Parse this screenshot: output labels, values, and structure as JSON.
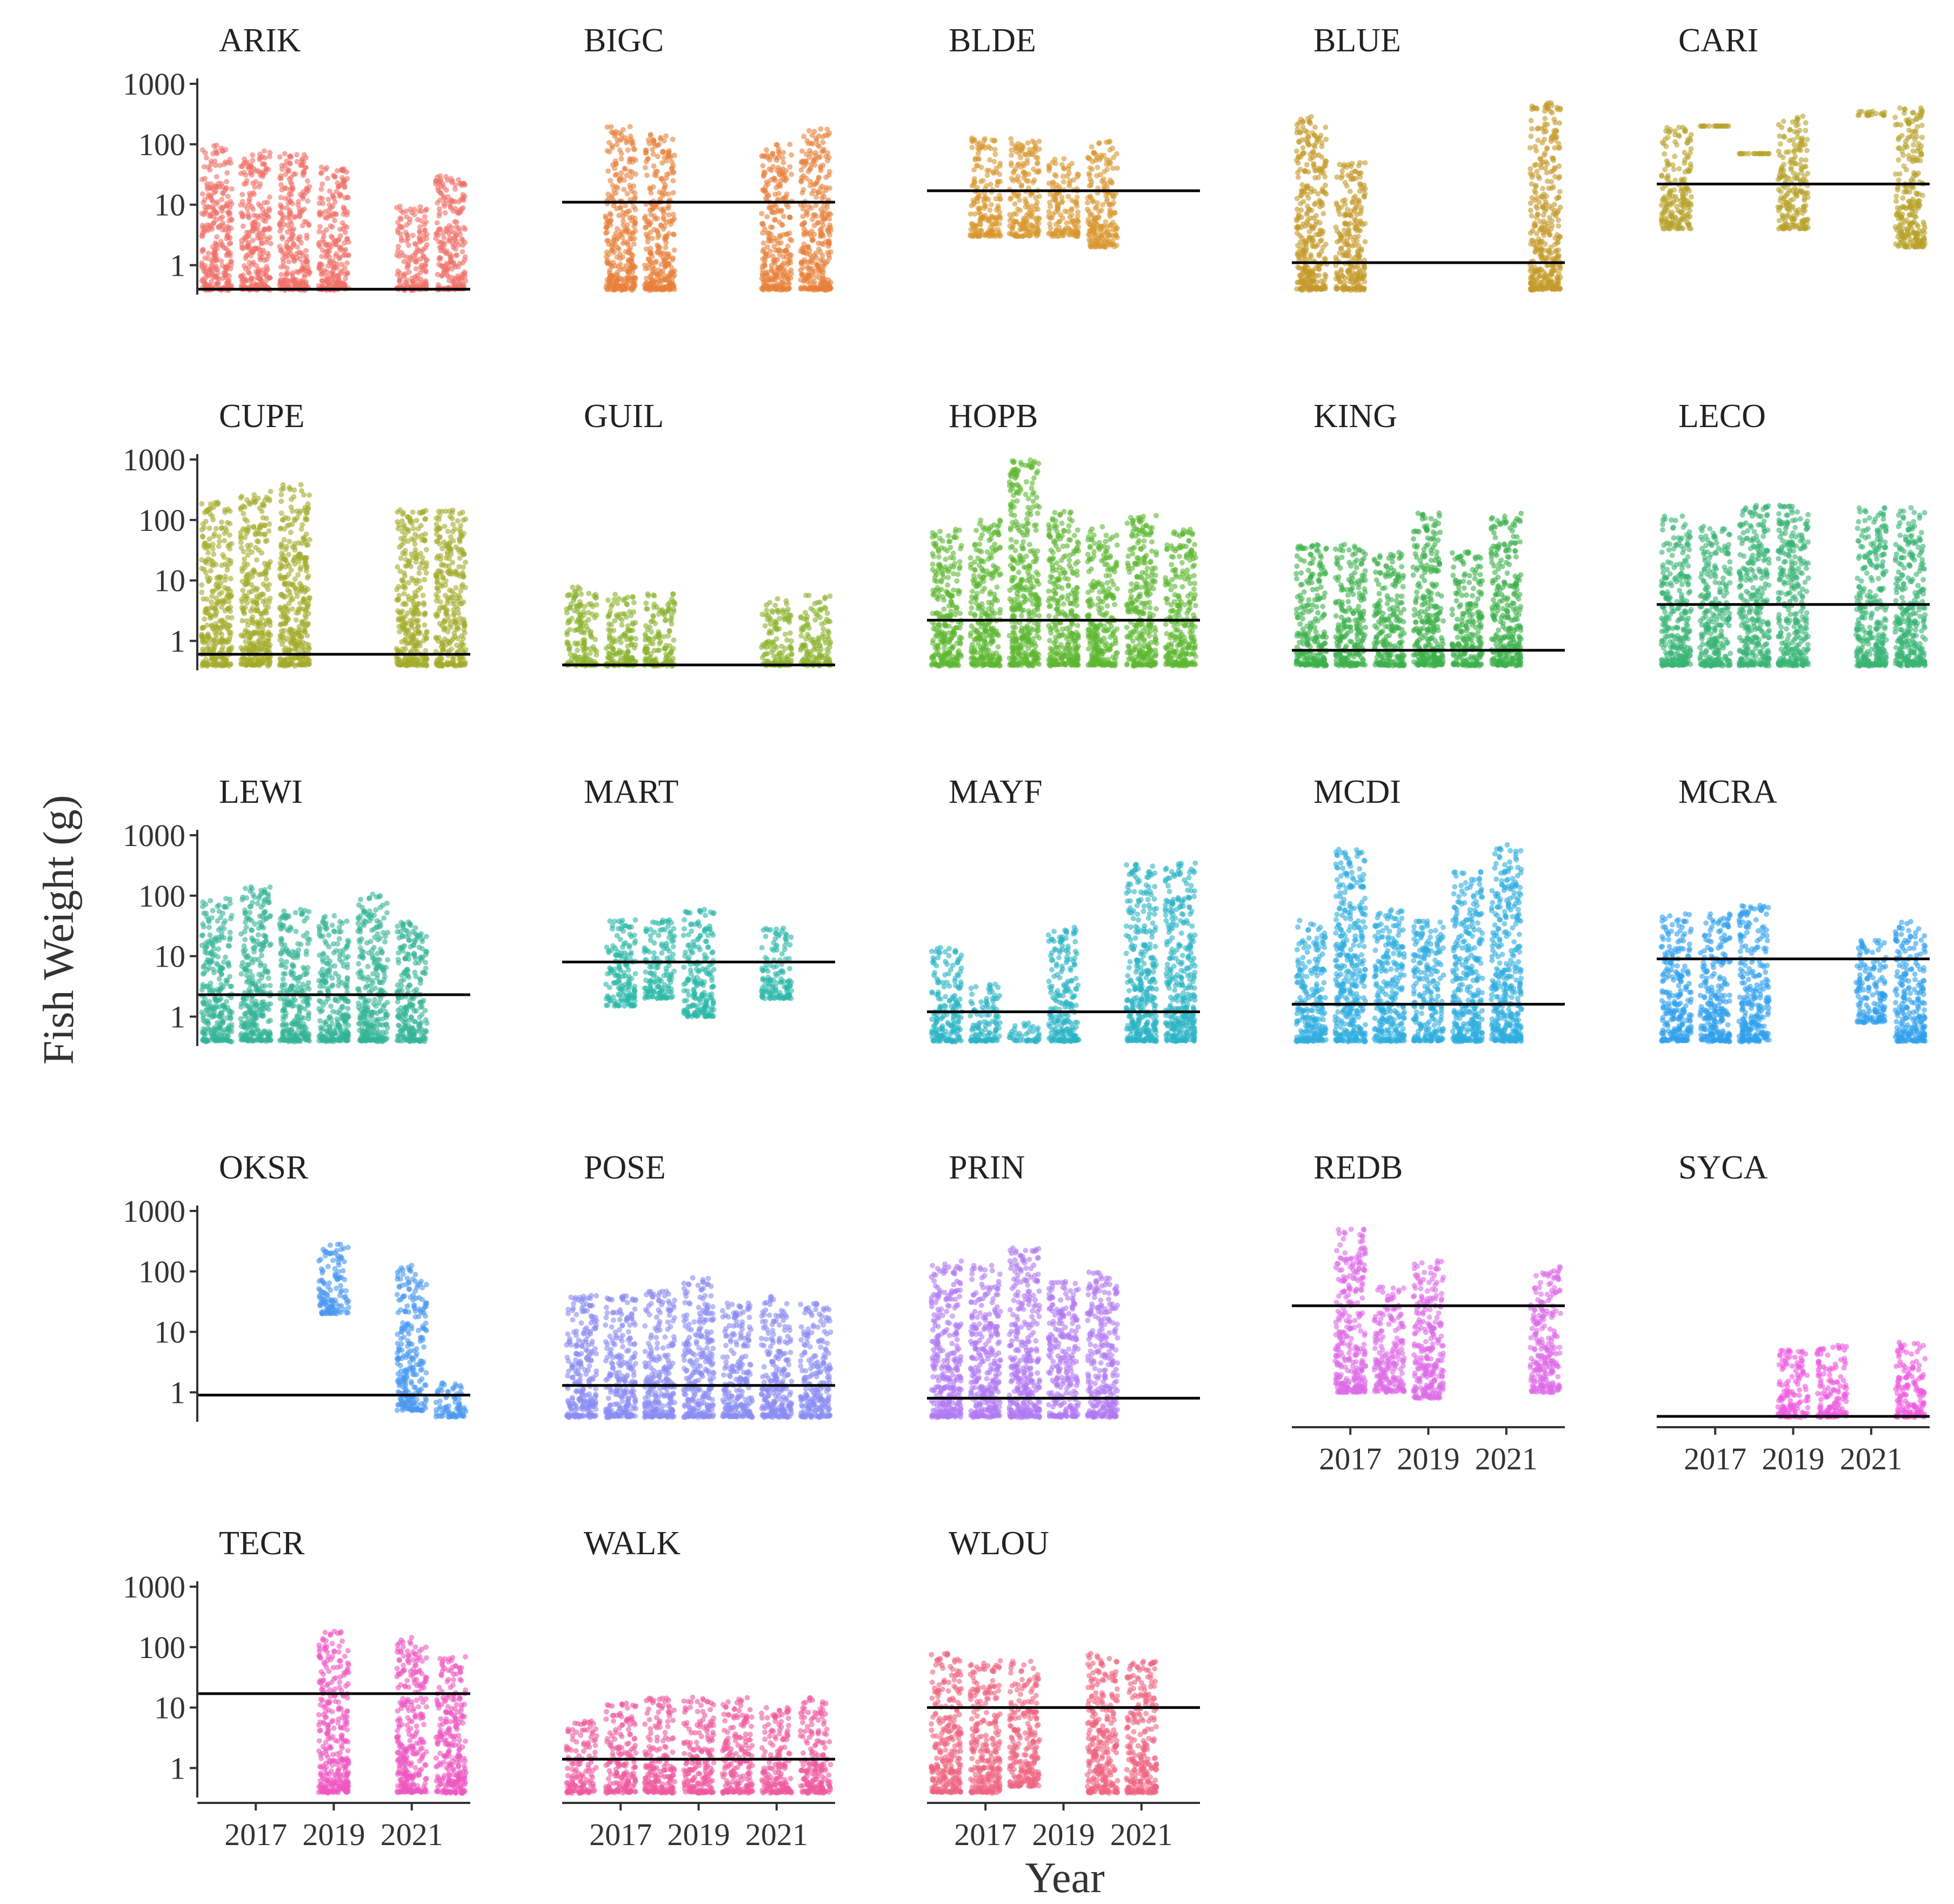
{
  "chart_data": {
    "type": "scatter",
    "title": "",
    "xlabel": "Year",
    "ylabel": "Fish Weight (g)",
    "yscale": "log10",
    "ylim": [
      0.4,
      1000
    ],
    "yticks": [
      1,
      10,
      100,
      1000
    ],
    "ytick_labels": [
      "1",
      "10",
      "100",
      "1000"
    ],
    "xlim": [
      2015.5,
      2022.5
    ],
    "xticks": [
      2017,
      2019,
      2021
    ],
    "xtick_labels": [
      "2017",
      "2019",
      "2021"
    ],
    "grid": false,
    "legend": "none",
    "panels": [
      {
        "site": "ARIK",
        "color": "#f07068",
        "median": 0.4,
        "groups": [
          {
            "year": 2016,
            "lo": 0.4,
            "hi": 100
          },
          {
            "year": 2017,
            "lo": 0.4,
            "hi": 80
          },
          {
            "year": 2018,
            "lo": 0.4,
            "hi": 70
          },
          {
            "year": 2019,
            "lo": 0.4,
            "hi": 45
          },
          {
            "year": 2021,
            "lo": 0.4,
            "hi": 10
          },
          {
            "year": 2022,
            "lo": 0.4,
            "hi": 30
          }
        ]
      },
      {
        "site": "BIGC",
        "color": "#e8803a",
        "median": 11,
        "groups": [
          {
            "year": 2017,
            "lo": 0.4,
            "hi": 200
          },
          {
            "year": 2018,
            "lo": 0.4,
            "hi": 150
          },
          {
            "year": 2021,
            "lo": 0.4,
            "hi": 100
          },
          {
            "year": 2022,
            "lo": 0.4,
            "hi": 200
          }
        ]
      },
      {
        "site": "BLDE",
        "color": "#d8962e",
        "median": 17,
        "groups": [
          {
            "year": 2017,
            "lo": 3,
            "hi": 130
          },
          {
            "year": 2018,
            "lo": 3,
            "hi": 130
          },
          {
            "year": 2019,
            "lo": 3,
            "hi": 60
          },
          {
            "year": 2020,
            "lo": 2,
            "hi": 120
          }
        ]
      },
      {
        "site": "BLUE",
        "color": "#c49a2a",
        "median": 1.1,
        "groups": [
          {
            "year": 2016,
            "lo": 0.4,
            "hi": 300
          },
          {
            "year": 2017,
            "lo": 0.4,
            "hi": 50
          },
          {
            "year": 2022,
            "lo": 0.4,
            "hi": 500
          }
        ]
      },
      {
        "site": "CARI",
        "color": "#b8a22a",
        "median": 22,
        "groups": [
          {
            "year": 2016,
            "lo": 4,
            "hi": 200
          },
          {
            "year": 2017,
            "lo": 200,
            "hi": 200
          },
          {
            "year": 2018,
            "lo": 70,
            "hi": 70
          },
          {
            "year": 2019,
            "lo": 4,
            "hi": 300
          },
          {
            "year": 2021,
            "lo": 300,
            "hi": 350
          },
          {
            "year": 2022,
            "lo": 2,
            "hi": 400
          }
        ]
      },
      {
        "site": "CUPE",
        "color": "#a4ab2a",
        "median": 0.6,
        "groups": [
          {
            "year": 2016,
            "lo": 0.4,
            "hi": 200
          },
          {
            "year": 2017,
            "lo": 0.4,
            "hi": 300
          },
          {
            "year": 2018,
            "lo": 0.4,
            "hi": 400
          },
          {
            "year": 2021,
            "lo": 0.4,
            "hi": 150
          },
          {
            "year": 2022,
            "lo": 0.4,
            "hi": 150
          }
        ]
      },
      {
        "site": "GUIL",
        "color": "#8ab22c",
        "median": 0.4,
        "groups": [
          {
            "year": 2016,
            "lo": 0.4,
            "hi": 8
          },
          {
            "year": 2017,
            "lo": 0.4,
            "hi": 6
          },
          {
            "year": 2018,
            "lo": 0.4,
            "hi": 6
          },
          {
            "year": 2021,
            "lo": 0.4,
            "hi": 5
          },
          {
            "year": 2022,
            "lo": 0.4,
            "hi": 6
          }
        ]
      },
      {
        "site": "HOPB",
        "color": "#5eb830",
        "median": 2.2,
        "groups": [
          {
            "year": 2016,
            "lo": 0.4,
            "hi": 70
          },
          {
            "year": 2017,
            "lo": 0.4,
            "hi": 100
          },
          {
            "year": 2018,
            "lo": 0.4,
            "hi": 1000
          },
          {
            "year": 2019,
            "lo": 0.4,
            "hi": 150
          },
          {
            "year": 2020,
            "lo": 0.4,
            "hi": 80
          },
          {
            "year": 2021,
            "lo": 0.4,
            "hi": 120
          },
          {
            "year": 2022,
            "lo": 0.4,
            "hi": 70
          }
        ]
      },
      {
        "site": "KING",
        "color": "#3cb04a",
        "median": 0.7,
        "groups": [
          {
            "year": 2016,
            "lo": 0.4,
            "hi": 40
          },
          {
            "year": 2017,
            "lo": 0.4,
            "hi": 40
          },
          {
            "year": 2018,
            "lo": 0.4,
            "hi": 30
          },
          {
            "year": 2019,
            "lo": 0.4,
            "hi": 130
          },
          {
            "year": 2020,
            "lo": 0.4,
            "hi": 30
          },
          {
            "year": 2021,
            "lo": 0.4,
            "hi": 130
          }
        ]
      },
      {
        "site": "LECO",
        "color": "#38b474",
        "median": 4,
        "groups": [
          {
            "year": 2016,
            "lo": 0.4,
            "hi": 120
          },
          {
            "year": 2017,
            "lo": 0.4,
            "hi": 80
          },
          {
            "year": 2018,
            "lo": 0.4,
            "hi": 180
          },
          {
            "year": 2019,
            "lo": 0.4,
            "hi": 180
          },
          {
            "year": 2021,
            "lo": 0.4,
            "hi": 160
          },
          {
            "year": 2022,
            "lo": 0.4,
            "hi": 160
          }
        ]
      },
      {
        "site": "LEWI",
        "color": "#34b496",
        "median": 2.3,
        "groups": [
          {
            "year": 2016,
            "lo": 0.4,
            "hi": 90
          },
          {
            "year": 2017,
            "lo": 0.4,
            "hi": 140
          },
          {
            "year": 2018,
            "lo": 0.4,
            "hi": 60
          },
          {
            "year": 2019,
            "lo": 0.4,
            "hi": 50
          },
          {
            "year": 2020,
            "lo": 0.4,
            "hi": 110
          },
          {
            "year": 2021,
            "lo": 0.4,
            "hi": 40
          }
        ]
      },
      {
        "site": "MART",
        "color": "#2cb8a8",
        "median": 8,
        "groups": [
          {
            "year": 2017,
            "lo": 1.5,
            "hi": 40
          },
          {
            "year": 2018,
            "lo": 2,
            "hi": 40
          },
          {
            "year": 2019,
            "lo": 1,
            "hi": 60
          },
          {
            "year": 2021,
            "lo": 2,
            "hi": 30
          }
        ]
      },
      {
        "site": "MAYF",
        "color": "#2cb4c4",
        "median": 1.2,
        "groups": [
          {
            "year": 2016,
            "lo": 0.4,
            "hi": 14
          },
          {
            "year": 2017,
            "lo": 0.4,
            "hi": 3.5
          },
          {
            "year": 2018,
            "lo": 0.4,
            "hi": 0.8
          },
          {
            "year": 2019,
            "lo": 0.4,
            "hi": 30
          },
          {
            "year": 2021,
            "lo": 0.4,
            "hi": 350
          },
          {
            "year": 2022,
            "lo": 0.4,
            "hi": 350
          }
        ]
      },
      {
        "site": "MCDI",
        "color": "#2eaee0",
        "median": 1.6,
        "groups": [
          {
            "year": 2016,
            "lo": 0.4,
            "hi": 40
          },
          {
            "year": 2017,
            "lo": 0.4,
            "hi": 600
          },
          {
            "year": 2018,
            "lo": 0.4,
            "hi": 60
          },
          {
            "year": 2019,
            "lo": 0.4,
            "hi": 40
          },
          {
            "year": 2020,
            "lo": 0.4,
            "hi": 250
          },
          {
            "year": 2021,
            "lo": 0.4,
            "hi": 700
          }
        ]
      },
      {
        "site": "MCRA",
        "color": "#30a0ec",
        "median": 9,
        "groups": [
          {
            "year": 2016,
            "lo": 0.4,
            "hi": 50
          },
          {
            "year": 2017,
            "lo": 0.4,
            "hi": 50
          },
          {
            "year": 2018,
            "lo": 0.4,
            "hi": 70
          },
          {
            "year": 2021,
            "lo": 0.8,
            "hi": 20
          },
          {
            "year": 2022,
            "lo": 0.4,
            "hi": 40
          }
        ]
      },
      {
        "site": "OKSR",
        "color": "#4a98f0",
        "median": 0.9,
        "groups": [
          {
            "year": 2019,
            "lo": 20,
            "hi": 300
          },
          {
            "year": 2021,
            "lo": 0.5,
            "hi": 130
          },
          {
            "year": 2022,
            "lo": 0.4,
            "hi": 1.5
          }
        ]
      },
      {
        "site": "POSE",
        "color": "#8a8cf4",
        "median": 1.3,
        "groups": [
          {
            "year": 2016,
            "lo": 0.4,
            "hi": 40
          },
          {
            "year": 2017,
            "lo": 0.4,
            "hi": 40
          },
          {
            "year": 2018,
            "lo": 0.4,
            "hi": 50
          },
          {
            "year": 2019,
            "lo": 0.4,
            "hi": 80
          },
          {
            "year": 2020,
            "lo": 0.4,
            "hi": 30
          },
          {
            "year": 2021,
            "lo": 0.4,
            "hi": 40
          },
          {
            "year": 2022,
            "lo": 0.4,
            "hi": 30
          }
        ]
      },
      {
        "site": "PRIN",
        "color": "#b07af4",
        "median": 0.8,
        "groups": [
          {
            "year": 2016,
            "lo": 0.4,
            "hi": 150
          },
          {
            "year": 2017,
            "lo": 0.4,
            "hi": 130
          },
          {
            "year": 2018,
            "lo": 0.4,
            "hi": 250
          },
          {
            "year": 2019,
            "lo": 0.4,
            "hi": 70
          },
          {
            "year": 2020,
            "lo": 0.4,
            "hi": 100
          }
        ]
      },
      {
        "site": "REDB",
        "color": "#de6ae8",
        "median": 27,
        "groups": [
          {
            "year": 2017,
            "lo": 1,
            "hi": 500
          },
          {
            "year": 2018,
            "lo": 1,
            "hi": 60
          },
          {
            "year": 2019,
            "lo": 0.8,
            "hi": 150
          },
          {
            "year": 2022,
            "lo": 1,
            "hi": 120
          }
        ]
      },
      {
        "site": "SYCA",
        "color": "#ee5ae0",
        "median": 0.4,
        "groups": [
          {
            "year": 2019,
            "lo": 0.4,
            "hi": 5
          },
          {
            "year": 2020,
            "lo": 0.4,
            "hi": 6
          },
          {
            "year": 2022,
            "lo": 0.4,
            "hi": 7
          }
        ]
      },
      {
        "site": "TECR",
        "color": "#ee56c2",
        "median": 17,
        "groups": [
          {
            "year": 2019,
            "lo": 0.4,
            "hi": 200
          },
          {
            "year": 2021,
            "lo": 0.4,
            "hi": 150
          },
          {
            "year": 2022,
            "lo": 0.4,
            "hi": 70
          }
        ]
      },
      {
        "site": "WALK",
        "color": "#ee5a9e",
        "median": 1.4,
        "groups": [
          {
            "year": 2016,
            "lo": 0.4,
            "hi": 6
          },
          {
            "year": 2017,
            "lo": 0.4,
            "hi": 12
          },
          {
            "year": 2018,
            "lo": 0.4,
            "hi": 15
          },
          {
            "year": 2019,
            "lo": 0.4,
            "hi": 15
          },
          {
            "year": 2020,
            "lo": 0.4,
            "hi": 15
          },
          {
            "year": 2021,
            "lo": 0.4,
            "hi": 10
          },
          {
            "year": 2022,
            "lo": 0.4,
            "hi": 15
          }
        ]
      },
      {
        "site": "WLOU",
        "color": "#ee6480",
        "median": 10,
        "groups": [
          {
            "year": 2016,
            "lo": 0.4,
            "hi": 80
          },
          {
            "year": 2017,
            "lo": 0.4,
            "hi": 60
          },
          {
            "year": 2018,
            "lo": 0.5,
            "hi": 60
          },
          {
            "year": 2020,
            "lo": 0.4,
            "hi": 80
          },
          {
            "year": 2021,
            "lo": 0.4,
            "hi": 60
          }
        ]
      }
    ]
  }
}
